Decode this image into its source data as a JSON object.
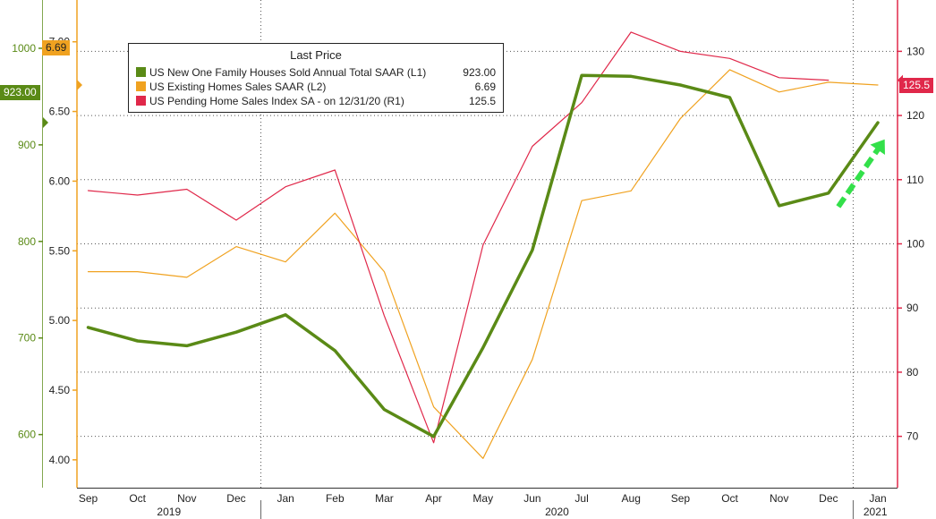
{
  "chart_data": {
    "type": "line",
    "legend_title": "Last Price",
    "x": [
      "Sep",
      "Oct",
      "Nov",
      "Dec",
      "Jan",
      "Feb",
      "Mar",
      "Apr",
      "May",
      "Jun",
      "Jul",
      "Aug",
      "Sep",
      "Oct",
      "Nov",
      "Dec",
      "Jan"
    ],
    "year_labels": [
      "2019",
      "2020",
      "2021"
    ],
    "axes": {
      "L1": {
        "ylim": [
          545,
          1050
        ],
        "ticks": [
          600,
          700,
          800,
          900,
          1000
        ],
        "color": "#5a8a16"
      },
      "L2": {
        "ylim": [
          3.8,
          7.3
        ],
        "ticks": [
          "4.00",
          "4.50",
          "5.00",
          "5.50",
          "6.00",
          "6.50",
          "7.00"
        ],
        "color": "#f0a220"
      },
      "R1": {
        "ylim": [
          62,
          138
        ],
        "ticks": [
          70,
          80,
          90,
          100,
          110,
          120,
          130
        ],
        "color": "#e0284a"
      }
    },
    "series": [
      {
        "name": "US New One Family Houses Sold Annual Total SAAR",
        "axis": "L1",
        "axis_tag": "(L1)",
        "last_value": "923.00",
        "color": "#5a8a16",
        "values": [
          711,
          697,
          692,
          706,
          724,
          687,
          626,
          598,
          690,
          791,
          972,
          971,
          962,
          949,
          837,
          850,
          923
        ]
      },
      {
        "name": "US Existing Homes Sales SAAR",
        "axis": "L2",
        "axis_tag": "(L2)",
        "last_value": "6.69",
        "color": "#f0a220",
        "values": [
          5.35,
          5.35,
          5.31,
          5.53,
          5.42,
          5.77,
          5.35,
          4.38,
          4.01,
          4.72,
          5.86,
          5.93,
          6.45,
          6.8,
          6.64,
          6.71,
          6.69
        ]
      },
      {
        "name": "US Pending Home Sales Index SA -  on 12/31/20",
        "axis": "R1",
        "axis_tag": "(R1)",
        "last_value": "125.5",
        "color": "#e0284a",
        "values": [
          108.3,
          107.6,
          108.5,
          103.7,
          108.9,
          111.5,
          88.8,
          69.0,
          99.8,
          115.2,
          122.0,
          133.0,
          130.0,
          128.9,
          125.9,
          125.5,
          null
        ]
      }
    ],
    "annotations": [
      "green dashed arrow pointing up from Dec to Jan"
    ]
  }
}
